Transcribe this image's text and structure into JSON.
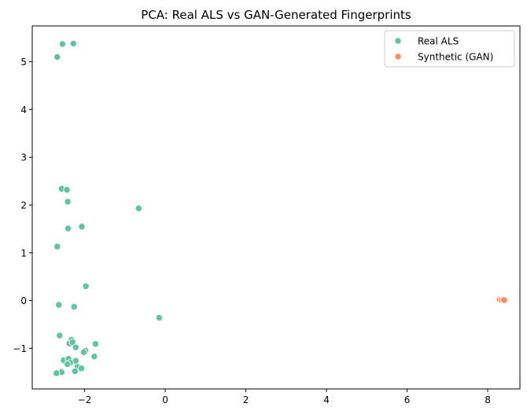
{
  "chart_data": {
    "type": "scatter",
    "title": "PCA: Real ALS vs GAN-Generated Fingerprints",
    "xlabel": "",
    "ylabel": "",
    "xlim": [
      -3.3,
      8.8
    ],
    "ylim": [
      -1.85,
      5.75
    ],
    "xticks": [
      -2,
      0,
      2,
      4,
      6,
      8
    ],
    "yticks": [
      -1,
      0,
      1,
      2,
      3,
      4,
      5
    ],
    "grid": false,
    "legend_position": "top-right",
    "series": [
      {
        "name": "Real ALS",
        "color": "#66c2a5",
        "points": [
          {
            "x": -2.55,
            "y": 5.37
          },
          {
            "x": -2.28,
            "y": 5.38
          },
          {
            "x": -2.68,
            "y": 5.1
          },
          {
            "x": -2.57,
            "y": 2.34
          },
          {
            "x": -2.44,
            "y": 2.32
          },
          {
            "x": -2.42,
            "y": 2.07
          },
          {
            "x": -0.66,
            "y": 1.93
          },
          {
            "x": -2.07,
            "y": 1.55
          },
          {
            "x": -2.41,
            "y": 1.51
          },
          {
            "x": -2.68,
            "y": 1.13
          },
          {
            "x": -1.97,
            "y": 0.3
          },
          {
            "x": -2.64,
            "y": -0.09
          },
          {
            "x": -2.26,
            "y": -0.13
          },
          {
            "x": -0.15,
            "y": -0.36
          },
          {
            "x": -2.62,
            "y": -0.73
          },
          {
            "x": -2.33,
            "y": -0.82
          },
          {
            "x": -2.38,
            "y": -0.9
          },
          {
            "x": -2.3,
            "y": -0.87
          },
          {
            "x": -1.73,
            "y": -0.91
          },
          {
            "x": -2.22,
            "y": -0.98
          },
          {
            "x": -1.98,
            "y": -1.05
          },
          {
            "x": -2.02,
            "y": -1.08
          },
          {
            "x": -1.76,
            "y": -1.17
          },
          {
            "x": -2.52,
            "y": -1.25
          },
          {
            "x": -2.4,
            "y": -1.22
          },
          {
            "x": -2.22,
            "y": -1.26
          },
          {
            "x": -2.36,
            "y": -1.3
          },
          {
            "x": -2.43,
            "y": -1.33
          },
          {
            "x": -2.18,
            "y": -1.39
          },
          {
            "x": -2.08,
            "y": -1.42
          },
          {
            "x": -2.58,
            "y": -1.48
          },
          {
            "x": -2.57,
            "y": -1.5
          },
          {
            "x": -2.24,
            "y": -1.48
          },
          {
            "x": -2.7,
            "y": -1.52
          }
        ]
      },
      {
        "name": "Synthetic (GAN)",
        "color": "#fc8d62",
        "points": [
          {
            "x": 8.3,
            "y": 0.02
          },
          {
            "x": 8.34,
            "y": 0.01
          },
          {
            "x": 8.38,
            "y": 0.02
          },
          {
            "x": 8.41,
            "y": 0.01
          }
        ]
      }
    ]
  }
}
